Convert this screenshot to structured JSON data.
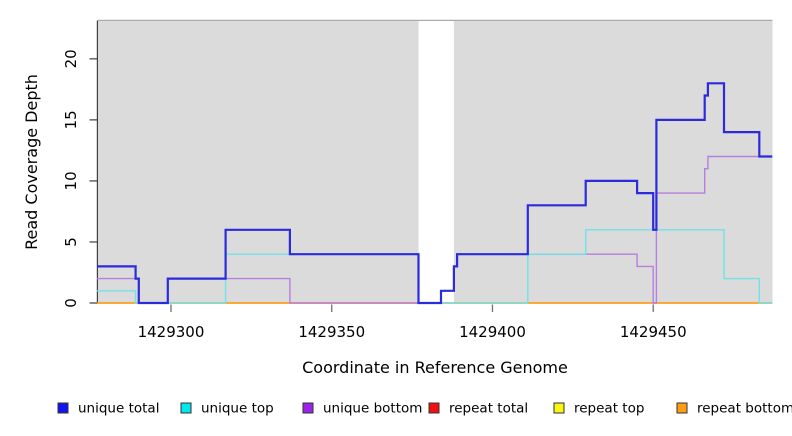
{
  "chart_data": {
    "type": "line",
    "step": true,
    "title": "",
    "xlabel": "Coordinate in Reference Genome",
    "ylabel": "Read Coverage Depth",
    "x_ticks": [
      1429300,
      1429350,
      1429400,
      1429450
    ],
    "y_ticks": [
      0,
      5,
      10,
      15,
      20
    ],
    "xlim": [
      1429277.3,
      1429487.1
    ],
    "ylim": [
      0,
      23.1
    ],
    "grid": false,
    "plot_background_color": "#DBDBDB",
    "plot_top_border_color": "#ABABAB",
    "axis_color": "#3E3E3E",
    "x_tick_color": "#707070",
    "gap_region": {
      "start": 1429377,
      "end": 1429388,
      "color": "#FFFFFF"
    },
    "series": [
      {
        "name": "unique total",
        "swatch_color": "#1414EE",
        "line_color": "#2B2BDC",
        "line_width": 2.2,
        "points": [
          [
            1429277,
            3
          ],
          [
            1429289,
            2
          ],
          [
            1429290,
            0
          ],
          [
            1429299,
            2
          ],
          [
            1429317,
            6
          ],
          [
            1429337,
            4
          ],
          [
            1429377,
            0
          ],
          [
            1429384,
            1
          ],
          [
            1429388,
            3
          ],
          [
            1429389,
            4
          ],
          [
            1429411,
            8
          ],
          [
            1429429,
            10
          ],
          [
            1429445,
            9
          ],
          [
            1429450,
            6
          ],
          [
            1429451,
            15
          ],
          [
            1429466,
            17
          ],
          [
            1429467,
            18
          ],
          [
            1429472,
            14
          ],
          [
            1429483,
            12
          ]
        ],
        "end": 1429487
      },
      {
        "name": "unique top",
        "swatch_color": "#00E6EE",
        "line_color": "#70E2E8",
        "line_width": 1.4,
        "points": [
          [
            1429277,
            1
          ],
          [
            1429289,
            0
          ],
          [
            1429317,
            4
          ],
          [
            1429377,
            0
          ],
          [
            1429411,
            4
          ],
          [
            1429429,
            6
          ],
          [
            1429472,
            2
          ],
          [
            1429483,
            0
          ]
        ],
        "end": 1429487
      },
      {
        "name": "unique bottom",
        "swatch_color": "#9B22E8",
        "line_color": "#B67FDE",
        "line_width": 1.4,
        "points": [
          [
            1429277,
            2
          ],
          [
            1429290,
            0
          ],
          [
            1429299,
            2
          ],
          [
            1429337,
            0
          ],
          [
            1429384,
            1
          ],
          [
            1429388,
            3
          ],
          [
            1429389,
            4
          ],
          [
            1429445,
            3
          ],
          [
            1429450,
            0
          ],
          [
            1429451,
            9
          ],
          [
            1429466,
            11
          ],
          [
            1429467,
            12
          ]
        ],
        "end": 1429487
      },
      {
        "name": "repeat total",
        "swatch_color": "#EE1111",
        "line_color": "#E8335A",
        "line_width": 1.3,
        "points": [
          [
            1429277,
            0
          ]
        ],
        "end": 1429487
      },
      {
        "name": "repeat top",
        "swatch_color": "#F7F711",
        "line_color": "#F0F030",
        "line_width": 1.3,
        "points": [
          [
            1429277,
            0
          ]
        ],
        "end": 1429487
      },
      {
        "name": "repeat bottom",
        "swatch_color": "#FF9D14",
        "line_color": "#FF9D14",
        "line_width": 1.5,
        "points": [
          [
            1429277,
            0
          ]
        ],
        "end": 1429487
      }
    ],
    "draw_order": [
      "repeat total",
      "repeat top",
      "repeat bottom",
      "unique bottom",
      "unique top",
      "unique total"
    ],
    "legend": {
      "entries": [
        "unique total",
        "unique top",
        "unique bottom",
        "repeat total",
        "repeat top",
        "repeat bottom"
      ],
      "position": "bottom"
    }
  }
}
